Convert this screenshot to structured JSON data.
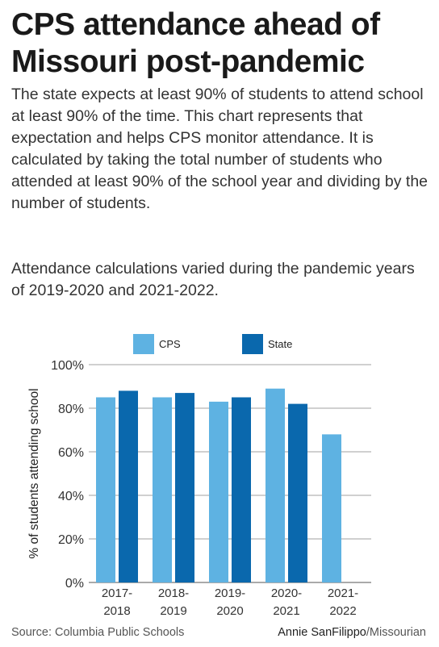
{
  "title": "CPS attendance ahead of Missouri post-pandemic",
  "description": "The state expects at least 90% of students to attend school at least 90% of the time. This chart represents that expectation and helps CPS monitor attendance. It is calculated by taking the total number of students who attended at least 90% of the school year and dividing by the number of students.",
  "note": "Attendance calculations varied during the pandemic years of 2019-2020 and 2021-2022.",
  "source": "Source: Columbia Public Schools",
  "credit": {
    "author": "Annie SanFilippo",
    "separator": "/",
    "outlet": "Missourian"
  },
  "colors": {
    "cps": "#5eb2e2",
    "state": "#0a68ad",
    "grid": "#a0a0a0"
  },
  "chart_data": {
    "type": "bar",
    "categories": [
      [
        "2017-",
        "2018"
      ],
      [
        "2018-",
        "2019"
      ],
      [
        "2019-",
        "2020"
      ],
      [
        "2020-",
        "2021"
      ],
      [
        "2021-",
        "2022"
      ]
    ],
    "series": [
      {
        "name": "CPS",
        "values": [
          85,
          85,
          83,
          89,
          68
        ]
      },
      {
        "name": "State",
        "values": [
          88,
          87,
          85,
          82,
          null
        ]
      }
    ],
    "ylabel": "% of students attending school",
    "ylim": [
      0,
      100
    ],
    "yticks": [
      "0%",
      "20%",
      "40%",
      "60%",
      "80%",
      "100%"
    ],
    "ytick_values": [
      0,
      20,
      40,
      60,
      80,
      100
    ],
    "grid": true,
    "legend": "top"
  }
}
